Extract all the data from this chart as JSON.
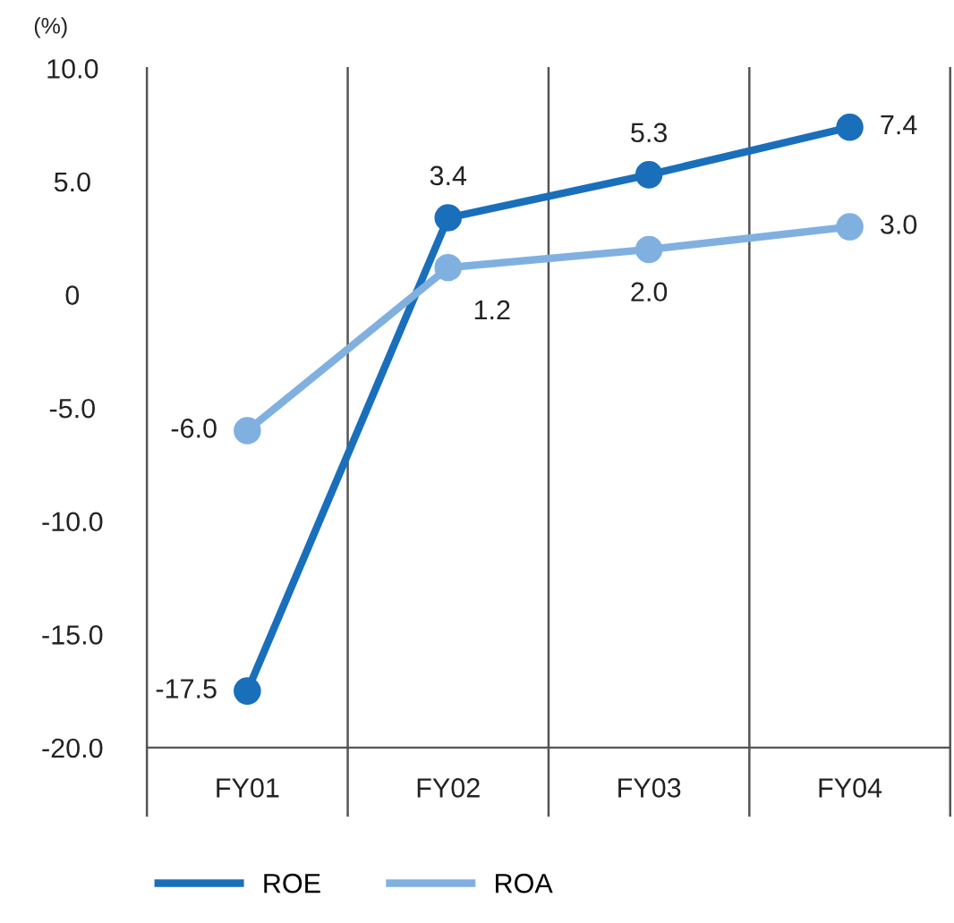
{
  "chart_data": {
    "type": "line",
    "ylabel": "(%)",
    "categories": [
      "FY01",
      "FY02",
      "FY03",
      "FY04"
    ],
    "series": [
      {
        "name": "ROE",
        "color": "#1a6fbb",
        "values": [
          -17.5,
          3.4,
          5.3,
          7.4
        ],
        "value_labels": [
          "-17.5",
          "3.4",
          "5.3",
          "7.4"
        ]
      },
      {
        "name": "ROA",
        "color": "#80b0e0",
        "values": [
          -6.0,
          1.2,
          2.0,
          3.0
        ],
        "value_labels": [
          "-6.0",
          "1.2",
          "2.0",
          "3.0"
        ]
      }
    ],
    "ylim": [
      -20,
      10
    ],
    "yticks": [
      {
        "value": -20,
        "label": "-20.0"
      },
      {
        "value": -15,
        "label": "-15.0"
      },
      {
        "value": -10,
        "label": "-10.0"
      },
      {
        "value": -5,
        "label": "-5.0"
      },
      0,
      {
        "value": 5,
        "label": "5.0"
      },
      {
        "value": 10,
        "label": "10.0"
      }
    ],
    "grid": "x",
    "legend": "bottom",
    "marker": "circle",
    "line_style": "solid"
  }
}
